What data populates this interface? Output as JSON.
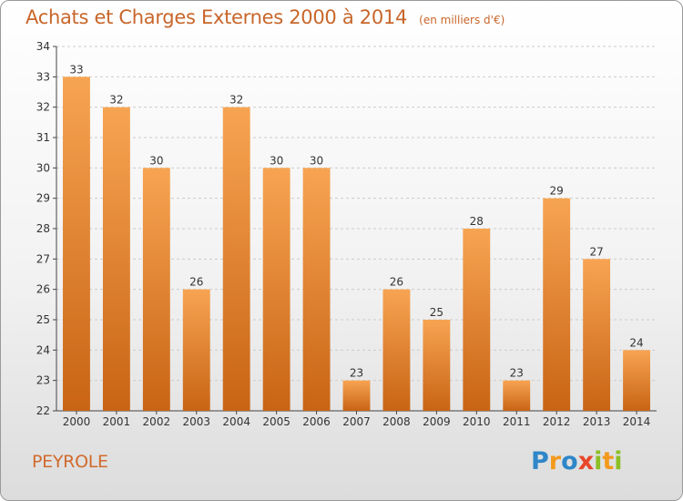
{
  "header": {
    "title": "Achats et Charges Externes 2000 à 2014",
    "unit": "(en milliers d'€)"
  },
  "footer": {
    "commune": "PEYROLE",
    "logo": {
      "p": "P",
      "r": "r",
      "o": "o",
      "x": "x",
      "i1": "i",
      "t": "t",
      "i2": "i"
    }
  },
  "colors": {
    "bar_top": "#f7a452",
    "bar_bottom": "#c86414",
    "title": "#c8662a",
    "axis": "#444444",
    "grid": "#cccccc"
  },
  "chart_data": {
    "type": "bar",
    "categories": [
      "2000",
      "2001",
      "2002",
      "2003",
      "2004",
      "2005",
      "2006",
      "2007",
      "2008",
      "2009",
      "2010",
      "2011",
      "2012",
      "2013",
      "2014"
    ],
    "values": [
      33,
      32,
      30,
      26,
      32,
      30,
      30,
      23,
      26,
      25,
      28,
      23,
      29,
      27,
      24
    ],
    "title": "Achats et Charges Externes 2000 à 2014",
    "ylim": [
      22,
      34
    ],
    "yticks": [
      22,
      23,
      24,
      25,
      26,
      27,
      28,
      29,
      30,
      31,
      32,
      33,
      34
    ],
    "grid": true,
    "data_labels": true
  }
}
